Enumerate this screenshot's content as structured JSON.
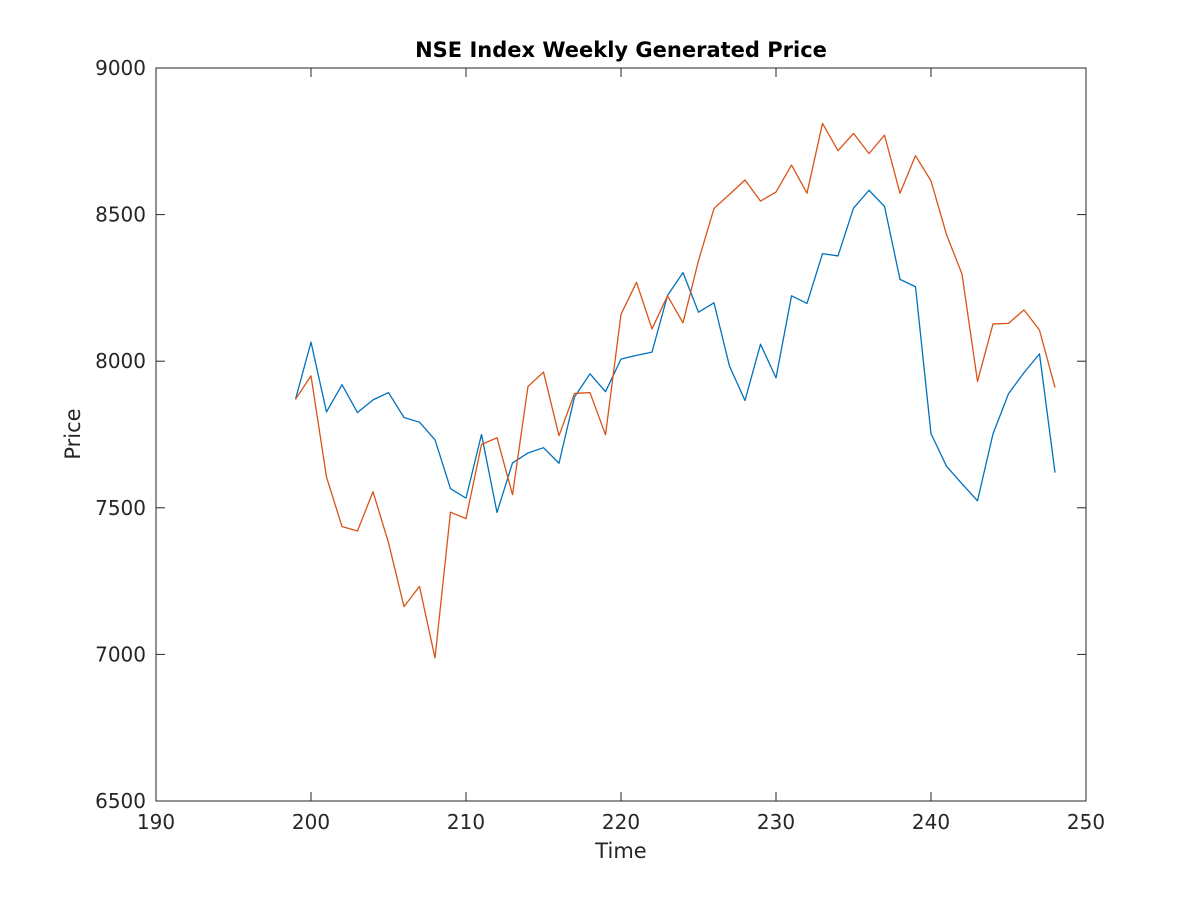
{
  "chart_data": {
    "type": "line",
    "title": "NSE Index Weekly Generated Price",
    "xlabel": "Time",
    "ylabel": "Price",
    "xlim": [
      190,
      250
    ],
    "ylim": [
      6500,
      9000
    ],
    "xticks": [
      "190",
      "200",
      "210",
      "220",
      "230",
      "240",
      "250"
    ],
    "yticks": [
      "6500",
      "7000",
      "7500",
      "8000",
      "8500",
      "9000"
    ],
    "grid": false,
    "legend": "none",
    "x": [
      199,
      200,
      201,
      202,
      203,
      204,
      205,
      206,
      207,
      208,
      209,
      210,
      211,
      212,
      213,
      214,
      215,
      216,
      217,
      218,
      219,
      220,
      221,
      222,
      223,
      224,
      225,
      226,
      227,
      228,
      229,
      230,
      231,
      232,
      233,
      234,
      235,
      236,
      237,
      238,
      239,
      240,
      241,
      242,
      243,
      244,
      245,
      246,
      247,
      248
    ],
    "series": [
      {
        "color": "#0072BD",
        "values": [
          7870,
          8065,
          7827,
          7920,
          7825,
          7868,
          7893,
          7808,
          7792,
          7732,
          7565,
          7533,
          7750,
          7484,
          7653,
          7687,
          7705,
          7652,
          7878,
          7957,
          7896,
          8007,
          8020,
          8031,
          8224,
          8302,
          8167,
          8199,
          7983,
          7866,
          8058,
          7943,
          8223,
          8197,
          8367,
          8359,
          8522,
          8583,
          8528,
          8279,
          8254,
          7753,
          7642,
          7582,
          7524,
          7752,
          7889,
          7961,
          8025,
          7620
        ]
      },
      {
        "color": "#D95319",
        "values": [
          7870,
          7950,
          7605,
          7436,
          7421,
          7555,
          7381,
          7163,
          7232,
          6988,
          7485,
          7463,
          7716,
          7739,
          7545,
          7914,
          7963,
          7746,
          7890,
          7893,
          7749,
          8160,
          8269,
          8110,
          8223,
          8131,
          8343,
          8521,
          8569,
          8618,
          8546,
          8577,
          8669,
          8573,
          8811,
          8718,
          8777,
          8708,
          8771,
          8573,
          8701,
          8615,
          8432,
          8297,
          7931,
          8127,
          8129,
          8175,
          8106,
          7910
        ]
      }
    ]
  }
}
